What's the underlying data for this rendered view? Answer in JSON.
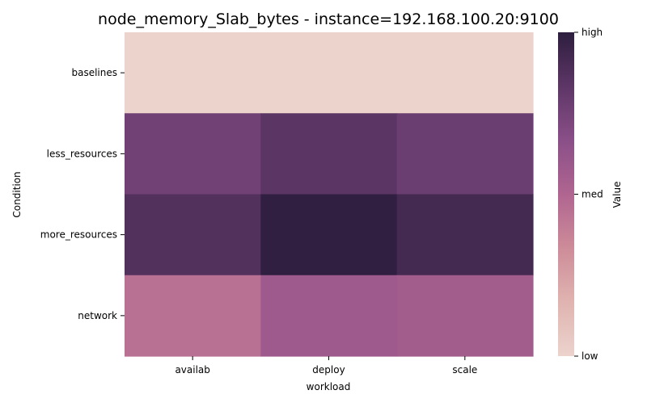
{
  "chart_data": {
    "type": "heatmap",
    "title": "node_memory_Slab_bytes - instance=192.168.100.20:9100",
    "xlabel": "workload",
    "ylabel": "Condition",
    "x_categories": [
      "availab",
      "deploy",
      "scale"
    ],
    "y_categories": [
      "baselines",
      "less_resources",
      "more_resources",
      "network"
    ],
    "values": [
      [
        0.0,
        0.0,
        0.0
      ],
      [
        0.76,
        0.84,
        0.78
      ],
      [
        0.87,
        0.99,
        0.92
      ],
      [
        0.45,
        0.58,
        0.56
      ]
    ],
    "colorbar": {
      "label": "Value",
      "range": [
        0,
        1
      ],
      "ticks": [
        {
          "value": 0,
          "label": "low"
        },
        {
          "value": 0.5,
          "label": "med"
        },
        {
          "value": 1,
          "label": "high"
        }
      ],
      "colormap": [
        "#ecd3cc",
        "#e0b4b0",
        "#cd8c99",
        "#b06590",
        "#8a4f88",
        "#5d3666",
        "#2d1e3e"
      ]
    },
    "grid": false,
    "legend": "right"
  }
}
